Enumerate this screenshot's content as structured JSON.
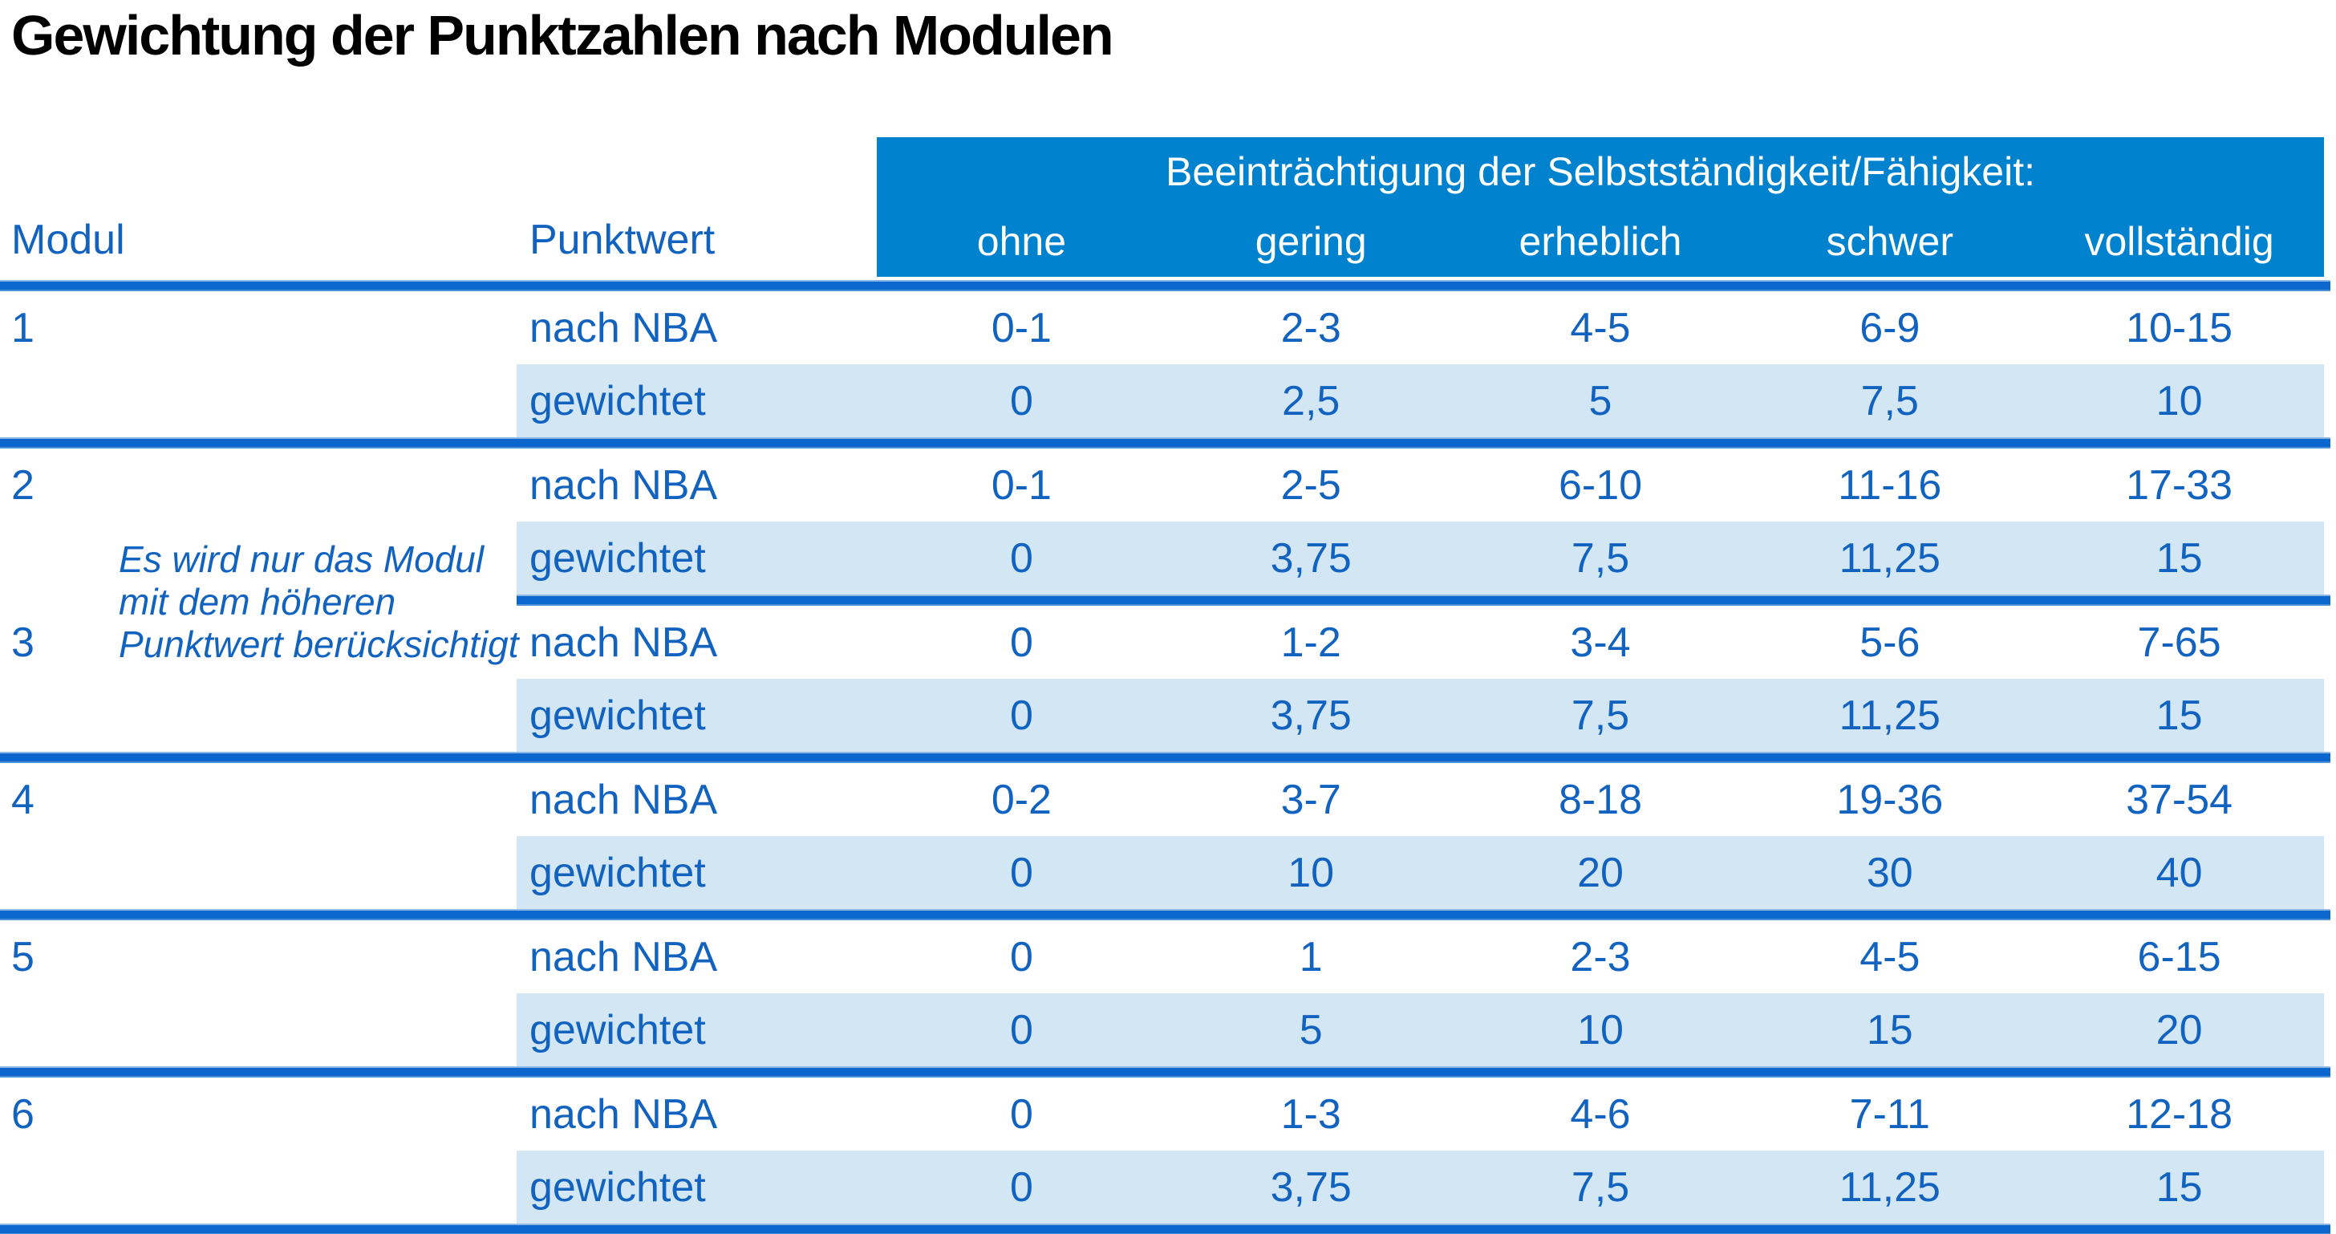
{
  "title": "Gewichtung der Punktzahlen nach Modulen",
  "colors": {
    "header_blue": "#0082CE",
    "separator_blue": "#0D66CD",
    "row_light_blue": "#D3E6F4",
    "text_blue": "#1263C0",
    "header_text_white": "#FFFFFF",
    "title_black": "#000000"
  },
  "table": {
    "col_headers": {
      "modul": "Modul",
      "punktwert": "Punktwert"
    },
    "impairment_header": "Beeinträchtigung der Selbstständigkeit/Fähigkeit:",
    "severity_levels": [
      "ohne",
      "gering",
      "erheblich",
      "schwer",
      "vollständig"
    ],
    "row_labels": {
      "nba": "nach NBA",
      "weighted": "gewichtet"
    },
    "note_lines": [
      "Es wird nur das Modul",
      "mit dem höheren",
      "Punktwert berücksichtigt"
    ],
    "modules": [
      {
        "id": "1",
        "nba": [
          "0-1",
          "2-3",
          "4-5",
          "6-9",
          "10-15"
        ],
        "weighted": [
          "0",
          "2,5",
          "5",
          "7,5",
          "10"
        ]
      },
      {
        "id": "2",
        "nba": [
          "0-1",
          "2-5",
          "6-10",
          "11-16",
          "17-33"
        ],
        "weighted": [
          "0",
          "3,75",
          "7,5",
          "11,25",
          "15"
        ]
      },
      {
        "id": "3",
        "nba": [
          "0",
          "1-2",
          "3-4",
          "5-6",
          "7-65"
        ],
        "weighted": [
          "0",
          "3,75",
          "7,5",
          "11,25",
          "15"
        ]
      },
      {
        "id": "4",
        "nba": [
          "0-2",
          "3-7",
          "8-18",
          "19-36",
          "37-54"
        ],
        "weighted": [
          "0",
          "10",
          "20",
          "30",
          "40"
        ]
      },
      {
        "id": "5",
        "nba": [
          "0",
          "1",
          "2-3",
          "4-5",
          "6-15"
        ],
        "weighted": [
          "0",
          "5",
          "10",
          "15",
          "20"
        ]
      },
      {
        "id": "6",
        "nba": [
          "0",
          "1-3",
          "4-6",
          "7-11",
          "12-18"
        ],
        "weighted": [
          "0",
          "3,75",
          "7,5",
          "11,25",
          "15"
        ]
      }
    ]
  }
}
